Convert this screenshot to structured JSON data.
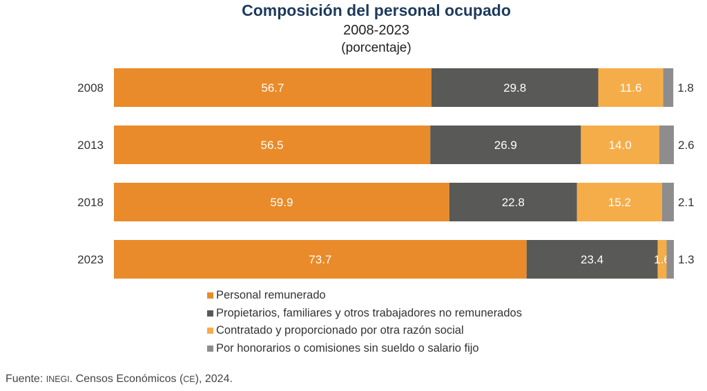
{
  "chart_data": {
    "type": "bar",
    "orientation": "horizontal",
    "stacked": true,
    "title": "Composición del personal ocupado",
    "subtitle": "2008-2023",
    "unit": "(porcentaje)",
    "categories": [
      "2008",
      "2013",
      "2018",
      "2023"
    ],
    "series": [
      {
        "name": "Personal remunerado",
        "color": "#e98b2a",
        "values": [
          56.7,
          56.5,
          59.9,
          73.7
        ]
      },
      {
        "name": "Propietarios, familiares y otros trabajadores no remunerados",
        "color": "#595957",
        "values": [
          29.8,
          26.9,
          22.8,
          23.4
        ]
      },
      {
        "name": "Contratado y proporcionado por otra razón social",
        "color": "#f5ad4a",
        "values": [
          11.6,
          14.0,
          15.2,
          1.6
        ]
      },
      {
        "name": "Por honorarios o comisiones sin sueldo o salario fijo",
        "color": "#8d8d8d",
        "values": [
          1.8,
          2.6,
          2.1,
          1.3
        ]
      }
    ],
    "xlim": [
      0,
      100
    ],
    "legend": "bottom",
    "grid": false
  },
  "source": {
    "prefix": "Fuente:",
    "org": "INEGI",
    "text1": ". Censos Económicos (",
    "abbr": "CE",
    "text2": "), 2024."
  }
}
